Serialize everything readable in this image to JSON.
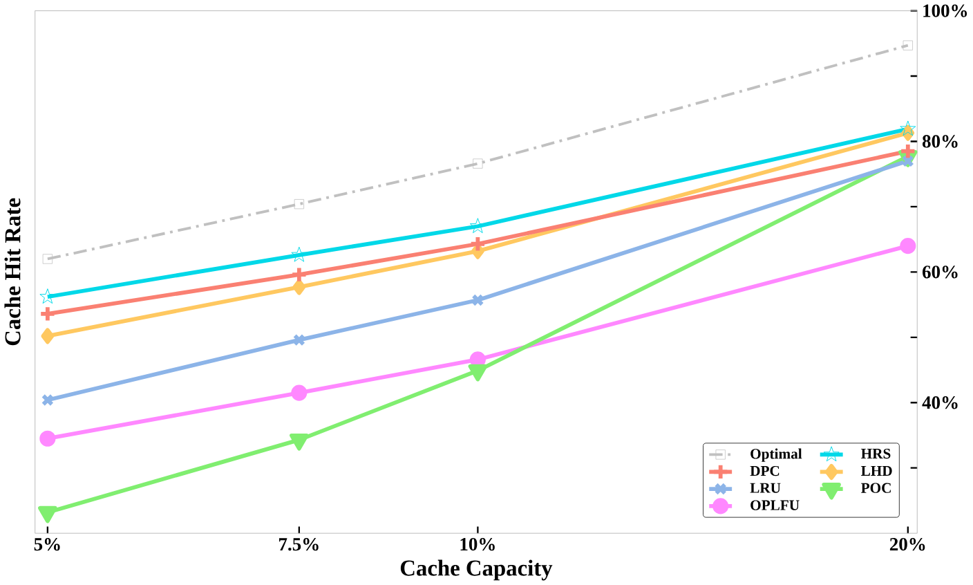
{
  "chart_data": {
    "type": "line",
    "xlabel": "Cache Capacity",
    "ylabel": "Cache Hit Rate",
    "x": [
      5,
      7.5,
      10,
      20
    ],
    "log": "x",
    "xlim": [
      4.9,
      20.3
    ],
    "ylim": [
      20,
      100
    ],
    "xticks": [
      {
        "value": 5,
        "label": "5%"
      },
      {
        "value": 7.5,
        "label": "7.5%"
      },
      {
        "value": 10,
        "label": "10%"
      },
      {
        "value": 20,
        "label": "20%"
      }
    ],
    "yticks": [
      {
        "value": 30,
        "label": null
      },
      {
        "value": 40,
        "label": "40%"
      },
      {
        "value": 50,
        "label": null
      },
      {
        "value": 60,
        "label": "60%"
      },
      {
        "value": 70,
        "label": null
      },
      {
        "value": 80,
        "label": "80%"
      },
      {
        "value": 90,
        "label": null
      },
      {
        "value": 100,
        "label": "100%"
      }
    ],
    "legend": "bottom right",
    "grid": false,
    "series": [
      {
        "name": "Optimal",
        "color": "#c0c0c0",
        "marker": "square",
        "line_style": "dashdot",
        "values": [
          62,
          70.4,
          76.6,
          94.7
        ]
      },
      {
        "name": "HRS",
        "color": "#00d8e8",
        "marker": "star",
        "values": [
          56.2,
          62.6,
          67,
          81.9
        ]
      },
      {
        "name": "DPC",
        "color": "#fa8072",
        "marker": "cross",
        "values": [
          53.6,
          59.6,
          64.3,
          78.5
        ]
      },
      {
        "name": "LHD",
        "color": "#ffc860",
        "marker": "diamond",
        "values": [
          50.2,
          57.7,
          63.2,
          81.3
        ]
      },
      {
        "name": "LRU",
        "color": "#8cb4e8",
        "marker": "x",
        "values": [
          40.4,
          49.6,
          55.7,
          77
        ]
      },
      {
        "name": "POC",
        "color": "#80ee70",
        "marker": "triangle",
        "values": [
          23.2,
          34.3,
          44.9,
          77.7
        ]
      },
      {
        "name": "OPLFU",
        "color": "#ff88ff",
        "marker": "circle",
        "values": [
          34.5,
          41.5,
          46.6,
          64
        ]
      }
    ]
  }
}
